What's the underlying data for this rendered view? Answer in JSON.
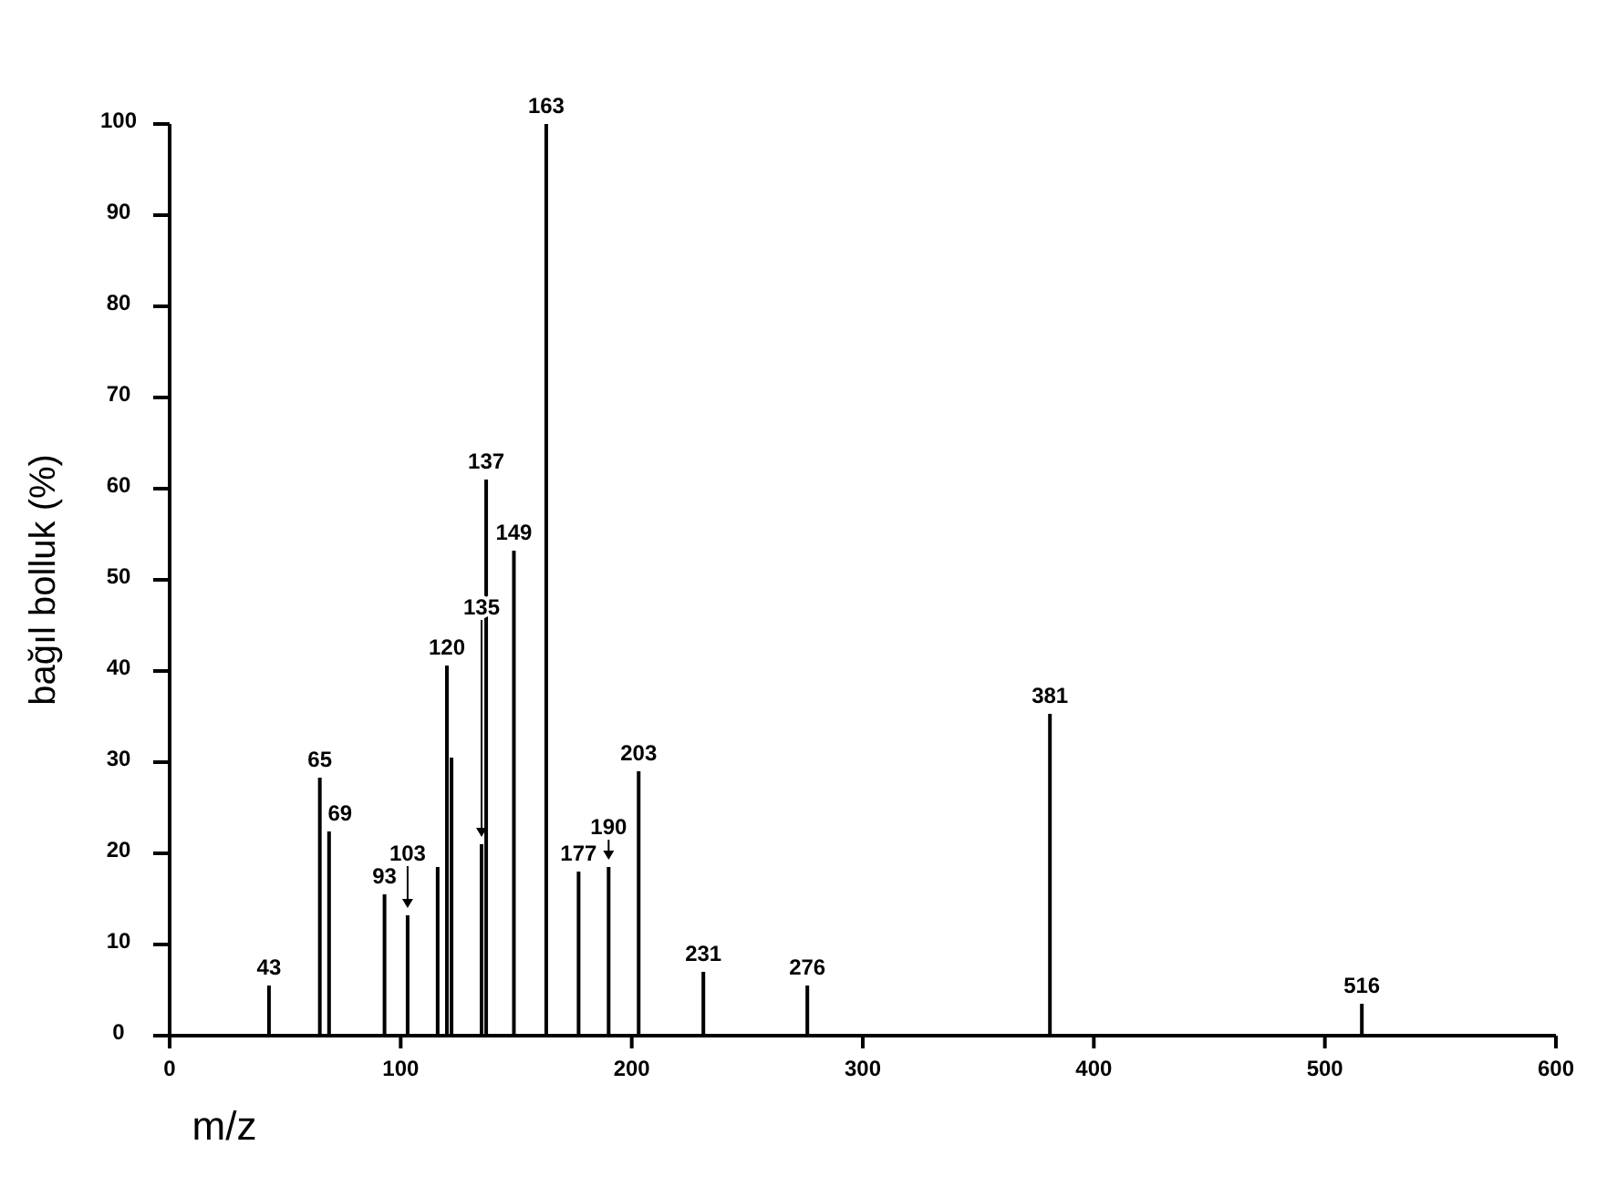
{
  "chart_data": {
    "type": "bar",
    "xlabel": "m/z",
    "ylabel": "bağıl bolluk (%)",
    "x": [
      43,
      65,
      69,
      93,
      103,
      116,
      120,
      122,
      135,
      137,
      149,
      163,
      177,
      190,
      203,
      231,
      276,
      381,
      516
    ],
    "values": [
      5.5,
      28.3,
      22.4,
      15.5,
      13.2,
      18.5,
      40.6,
      30.5,
      21,
      61,
      53.2,
      100,
      18,
      18.5,
      29,
      7,
      5.5,
      35.3,
      3.5
    ],
    "annotations": [
      {
        "text": "43",
        "x": 43,
        "y": 5.5
      },
      {
        "text": "65",
        "x": 65,
        "y": 28.3
      },
      {
        "text": "69",
        "x": 69,
        "y": 22.4
      },
      {
        "text": "93",
        "x": 93,
        "y": 15.5
      },
      {
        "text": "103",
        "x": 103,
        "y": 13.2
      },
      {
        "text": "120",
        "x": 120,
        "y": 40.6
      },
      {
        "text": "135",
        "x": 135,
        "y": 21
      },
      {
        "text": "137",
        "x": 137,
        "y": 61
      },
      {
        "text": "149",
        "x": 149,
        "y": 53.2
      },
      {
        "text": "163",
        "x": 163,
        "y": 100
      },
      {
        "text": "177",
        "x": 177,
        "y": 18
      },
      {
        "text": "190",
        "x": 190,
        "y": 18.5
      },
      {
        "text": "203",
        "x": 203,
        "y": 29
      },
      {
        "text": "231",
        "x": 231,
        "y": 7
      },
      {
        "text": "276",
        "x": 276,
        "y": 5.5
      },
      {
        "text": "381",
        "x": 381,
        "y": 35.3
      },
      {
        "text": "516",
        "x": 516,
        "y": 3.5
      }
    ],
    "color": "#000000",
    "xlim": [
      0,
      600
    ],
    "xticks": [
      0,
      100,
      200,
      300,
      400,
      500,
      600
    ],
    "ylim": [
      0,
      100
    ],
    "yticks": [
      0,
      10,
      20,
      30,
      40,
      50,
      60,
      70,
      80,
      90,
      100
    ],
    "grid": false
  }
}
